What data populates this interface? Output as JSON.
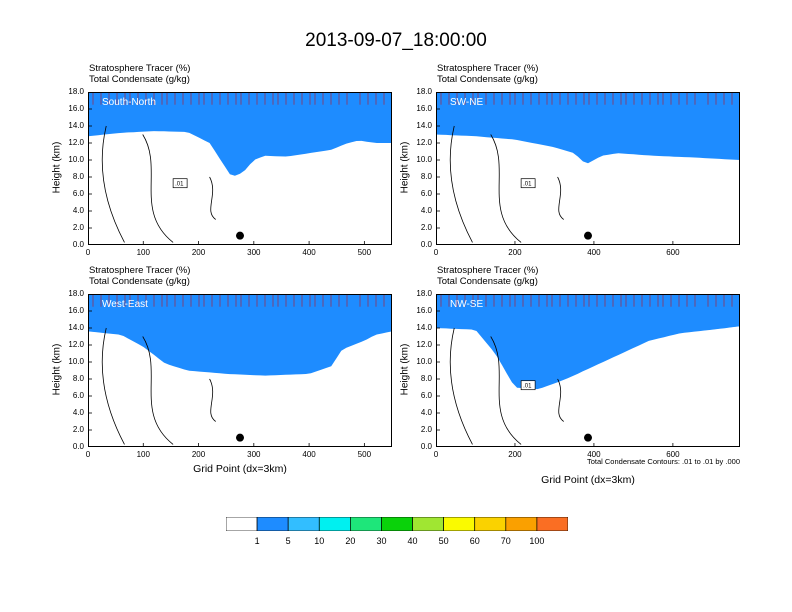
{
  "title": "2013-09-07_18:00:00",
  "colors": {
    "levels": [
      "#ffffff",
      "#1e8cff",
      "#32beff",
      "#00f0f0",
      "#1ee67a",
      "#0ad20a",
      "#a0e632",
      "#fafa00",
      "#fad200",
      "#faa000",
      "#fa6e23",
      "#ff2d1e",
      "#ff0000"
    ],
    "contour": "#000000"
  },
  "colorbar": {
    "labels": [
      "1",
      "5",
      "10",
      "20",
      "30",
      "40",
      "50",
      "60",
      "70",
      "100"
    ]
  },
  "annotation": "Total Condensate Contours: .01 to .01 by .000",
  "chart_data": [
    {
      "type": "heatmap",
      "panel": "South-North",
      "title_lines": [
        "Stratosphere Tracer   (%)",
        "Total Condensate   (g/kg)"
      ],
      "ylabel": "Height (km)",
      "xlabel": "",
      "xlim": [
        0,
        550
      ],
      "ylim": [
        0,
        18
      ],
      "xticks": [
        "0",
        "100",
        "200",
        "300",
        "400",
        "500"
      ],
      "yticks": [
        "0.0",
        "2.0",
        "4.0",
        "6.0",
        "8.0",
        "10.0",
        "12.0",
        "14.0",
        "16.0",
        "18.0"
      ],
      "contour_label": ".01",
      "marker_x": 275,
      "tracer_profile": {
        "x": [
          0,
          60,
          120,
          180,
          220,
          250,
          260,
          280,
          300,
          320,
          360,
          400,
          440,
          470,
          490,
          520,
          550
        ],
        "top_base": [
          14.5,
          14.6,
          14.5,
          14.4,
          14.2,
          12.8,
          10.5,
          10.6,
          11.2,
          11.6,
          11.5,
          12.0,
          12.5,
          13.0,
          13.3,
          13.1,
          13.0
        ],
        "bottom_base": [
          12.8,
          13.2,
          13.4,
          13.3,
          12.0,
          9.0,
          8.0,
          8.5,
          10.0,
          10.5,
          10.4,
          10.8,
          11.2,
          12.0,
          12.3,
          12.0,
          12.0
        ]
      }
    },
    {
      "type": "heatmap",
      "panel": "SW-NE",
      "title_lines": [
        "Stratosphere Tracer   (%)",
        "Total Condensate   (g/kg)"
      ],
      "ylabel": "Height (km)",
      "xlabel": "",
      "xlim": [
        0,
        770
      ],
      "ylim": [
        0,
        18
      ],
      "xticks": [
        "0",
        "200",
        "400",
        "600"
      ],
      "yticks": [
        "0.0",
        "2.0",
        "4.0",
        "6.0",
        "8.0",
        "10.0",
        "12.0",
        "14.0",
        "16.0",
        "18.0"
      ],
      "contour_label": ".01",
      "marker_x": 385,
      "tracer_profile": {
        "x": [
          0,
          100,
          200,
          300,
          350,
          380,
          420,
          460,
          550,
          650,
          770
        ],
        "top_base": [
          14.5,
          14.4,
          14.3,
          13.6,
          13.0,
          12.5,
          12.8,
          13.0,
          12.6,
          12.4,
          12.2
        ],
        "bottom_base": [
          13.0,
          12.8,
          12.4,
          11.5,
          10.8,
          9.5,
          10.5,
          10.8,
          10.5,
          10.3,
          10.0
        ]
      }
    },
    {
      "type": "heatmap",
      "panel": "West-East",
      "title_lines": [
        "Stratosphere Tracer   (%)",
        "Total Condensate   (g/kg)"
      ],
      "ylabel": "Height (km)",
      "xlabel": "Grid Point (dx=3km)",
      "xlim": [
        0,
        550
      ],
      "ylim": [
        0,
        18
      ],
      "xticks": [
        "0",
        "100",
        "200",
        "300",
        "400",
        "500"
      ],
      "yticks": [
        "0.0",
        "2.0",
        "4.0",
        "6.0",
        "8.0",
        "10.0",
        "12.0",
        "14.0",
        "16.0",
        "18.0"
      ],
      "contour_label": "",
      "marker_x": 275,
      "tracer_profile": {
        "x": [
          0,
          60,
          100,
          140,
          180,
          250,
          320,
          400,
          440,
          460,
          500,
          520,
          550
        ],
        "top_base": [
          14.0,
          13.8,
          13.0,
          11.8,
          11.0,
          10.5,
          10.3,
          10.8,
          12.2,
          13.0,
          13.6,
          14.0,
          14.2
        ],
        "bottom_base": [
          13.6,
          13.2,
          11.8,
          9.8,
          9.0,
          8.6,
          8.4,
          8.6,
          9.5,
          11.5,
          12.5,
          13.2,
          13.6
        ]
      }
    },
    {
      "type": "heatmap",
      "panel": "NW-SE",
      "title_lines": [
        "Stratosphere Tracer   (%)",
        "Total Condensate   (g/kg)"
      ],
      "ylabel": "Height (km)",
      "xlabel": "Grid Point (dx=3km)",
      "xlim": [
        0,
        770
      ],
      "ylim": [
        0,
        18
      ],
      "xticks": [
        "0",
        "200",
        "400",
        "600"
      ],
      "yticks": [
        "0.0",
        "2.0",
        "4.0",
        "6.0",
        "8.0",
        "10.0",
        "12.0",
        "14.0",
        "16.0",
        "18.0"
      ],
      "contour_label": ".01",
      "marker_x": 385,
      "tracer_profile": {
        "x": [
          0,
          100,
          150,
          200,
          260,
          330,
          400,
          470,
          540,
          620,
          700,
          770
        ],
        "top_base": [
          14.5,
          14.3,
          12.5,
          10.0,
          9.5,
          10.2,
          11.5,
          12.5,
          13.2,
          13.8,
          14.2,
          14.5
        ],
        "bottom_base": [
          14.0,
          13.8,
          11.0,
          7.0,
          6.8,
          8.0,
          9.5,
          11.0,
          12.5,
          13.4,
          13.8,
          14.2
        ]
      }
    }
  ]
}
